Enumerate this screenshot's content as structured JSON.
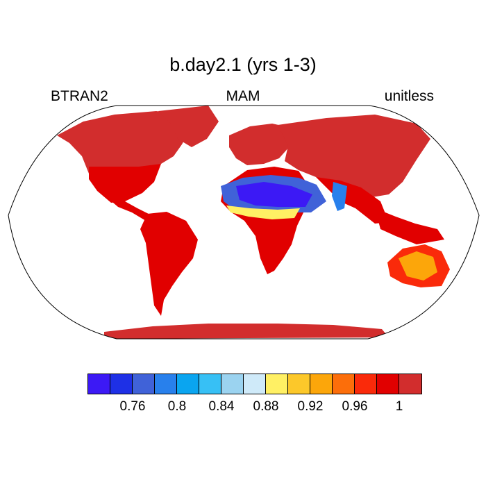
{
  "title": "b.day2.1 (yrs 1-3)",
  "left_label": "BTRAN2",
  "center_label": "MAM",
  "right_label": "unitless",
  "colorbar": {
    "colors": [
      "#3c19f5",
      "#1e30e6",
      "#4062d8",
      "#2880ec",
      "#0aa5f0",
      "#37c0f5",
      "#9bd3f0",
      "#cfeaf9",
      "#fff064",
      "#fcc82a",
      "#fca60a",
      "#fc6e0a",
      "#fa2a0a",
      "#e10000",
      "#d22d2d"
    ],
    "tick_labels": [
      "0.76",
      "0.8",
      "0.84",
      "0.88",
      "0.92",
      "0.96",
      "1"
    ]
  }
}
